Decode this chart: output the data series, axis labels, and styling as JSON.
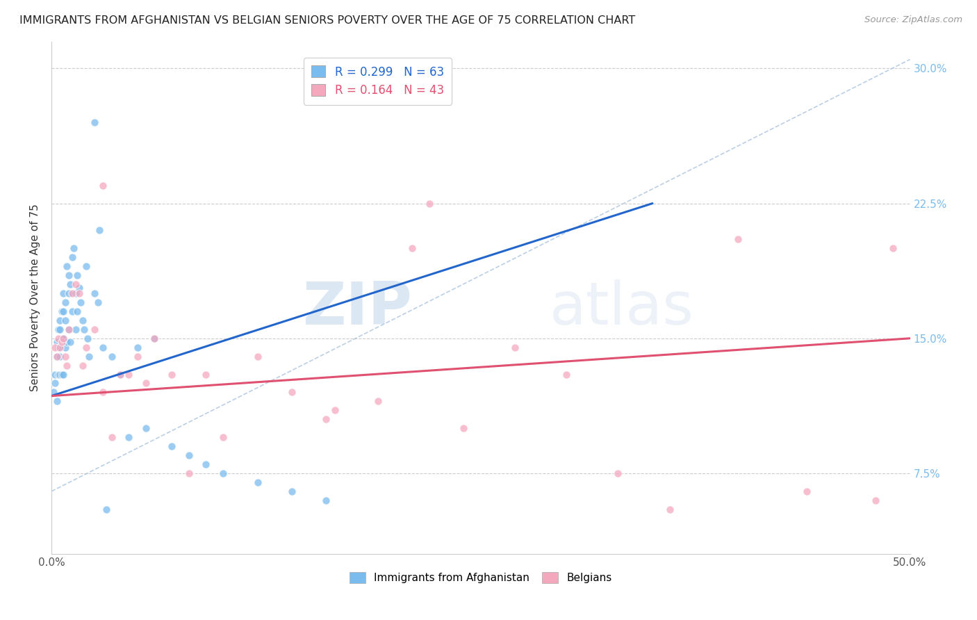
{
  "title": "IMMIGRANTS FROM AFGHANISTAN VS BELGIAN SENIORS POVERTY OVER THE AGE OF 75 CORRELATION CHART",
  "source": "Source: ZipAtlas.com",
  "ylabel": "Seniors Poverty Over the Age of 75",
  "xlim": [
    0.0,
    0.5
  ],
  "ylim": [
    0.03,
    0.315
  ],
  "xticks": [
    0.0,
    0.05,
    0.1,
    0.15,
    0.2,
    0.25,
    0.3,
    0.35,
    0.4,
    0.45,
    0.5
  ],
  "xtick_labeled": [
    0.0,
    0.5
  ],
  "xticklabel_left": "0.0%",
  "xticklabel_right": "50.0%",
  "yticks": [
    0.075,
    0.15,
    0.225,
    0.3
  ],
  "yticklabels": [
    "7.5%",
    "15.0%",
    "22.5%",
    "30.0%"
  ],
  "legend_r1": "R = 0.299",
  "legend_n1": "N = 63",
  "legend_r2": "R = 0.164",
  "legend_n2": "N = 43",
  "color_blue": "#7bbcee",
  "color_pink": "#f4a8be",
  "color_blue_line": "#2266cc",
  "color_pink_line": "#e05070",
  "watermark_zip": "ZIP",
  "watermark_atlas": "atlas",
  "series1_x": [
    0.001,
    0.002,
    0.002,
    0.003,
    0.003,
    0.003,
    0.004,
    0.004,
    0.004,
    0.005,
    0.005,
    0.005,
    0.005,
    0.006,
    0.006,
    0.006,
    0.007,
    0.007,
    0.007,
    0.007,
    0.008,
    0.008,
    0.008,
    0.009,
    0.009,
    0.01,
    0.01,
    0.01,
    0.011,
    0.011,
    0.012,
    0.012,
    0.013,
    0.014,
    0.014,
    0.015,
    0.015,
    0.016,
    0.017,
    0.018,
    0.019,
    0.02,
    0.021,
    0.022,
    0.025,
    0.027,
    0.03,
    0.035,
    0.04,
    0.045,
    0.05,
    0.055,
    0.06,
    0.07,
    0.08,
    0.09,
    0.1,
    0.12,
    0.14,
    0.16,
    0.025,
    0.028,
    0.032
  ],
  "series1_y": [
    0.12,
    0.13,
    0.125,
    0.148,
    0.14,
    0.115,
    0.155,
    0.145,
    0.13,
    0.16,
    0.155,
    0.14,
    0.13,
    0.165,
    0.15,
    0.13,
    0.175,
    0.165,
    0.15,
    0.13,
    0.17,
    0.16,
    0.145,
    0.19,
    0.148,
    0.185,
    0.175,
    0.155,
    0.18,
    0.148,
    0.195,
    0.165,
    0.2,
    0.175,
    0.155,
    0.185,
    0.165,
    0.178,
    0.17,
    0.16,
    0.155,
    0.19,
    0.15,
    0.14,
    0.175,
    0.17,
    0.145,
    0.14,
    0.13,
    0.095,
    0.145,
    0.1,
    0.15,
    0.09,
    0.085,
    0.08,
    0.075,
    0.07,
    0.065,
    0.06,
    0.27,
    0.21,
    0.055
  ],
  "series2_x": [
    0.002,
    0.003,
    0.004,
    0.005,
    0.006,
    0.007,
    0.008,
    0.009,
    0.01,
    0.012,
    0.014,
    0.016,
    0.018,
    0.02,
    0.025,
    0.03,
    0.035,
    0.04,
    0.05,
    0.06,
    0.07,
    0.08,
    0.09,
    0.1,
    0.12,
    0.14,
    0.16,
    0.19,
    0.22,
    0.24,
    0.27,
    0.3,
    0.33,
    0.36,
    0.4,
    0.44,
    0.48,
    0.49,
    0.03,
    0.045,
    0.055,
    0.165,
    0.21
  ],
  "series2_y": [
    0.145,
    0.14,
    0.15,
    0.145,
    0.148,
    0.15,
    0.14,
    0.135,
    0.155,
    0.175,
    0.18,
    0.175,
    0.135,
    0.145,
    0.155,
    0.12,
    0.095,
    0.13,
    0.14,
    0.15,
    0.13,
    0.075,
    0.13,
    0.095,
    0.14,
    0.12,
    0.105,
    0.115,
    0.225,
    0.1,
    0.145,
    0.13,
    0.075,
    0.055,
    0.205,
    0.065,
    0.06,
    0.2,
    0.235,
    0.13,
    0.125,
    0.11,
    0.2
  ],
  "trendline1_x": [
    0.0,
    0.35
  ],
  "trendline1_y": [
    0.118,
    0.225
  ],
  "trendline2_x": [
    0.0,
    0.5
  ],
  "trendline2_y": [
    0.118,
    0.15
  ],
  "dashed_line_x": [
    0.0,
    0.5
  ],
  "dashed_line_y": [
    0.065,
    0.305
  ],
  "grid_color": "#cccccc",
  "background_color": "#ffffff"
}
